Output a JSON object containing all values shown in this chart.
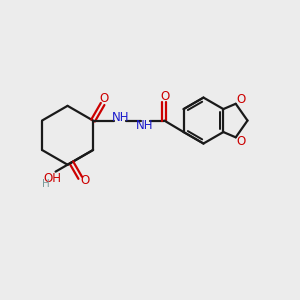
{
  "bg_color": "#ececec",
  "bond_color": "#1a1a1a",
  "o_color": "#cc0000",
  "n_color": "#1a1acc",
  "h_color": "#7a9a9a",
  "figsize": [
    3.0,
    3.0
  ],
  "dpi": 100,
  "xlim": [
    0,
    10
  ],
  "ylim": [
    0,
    10
  ]
}
